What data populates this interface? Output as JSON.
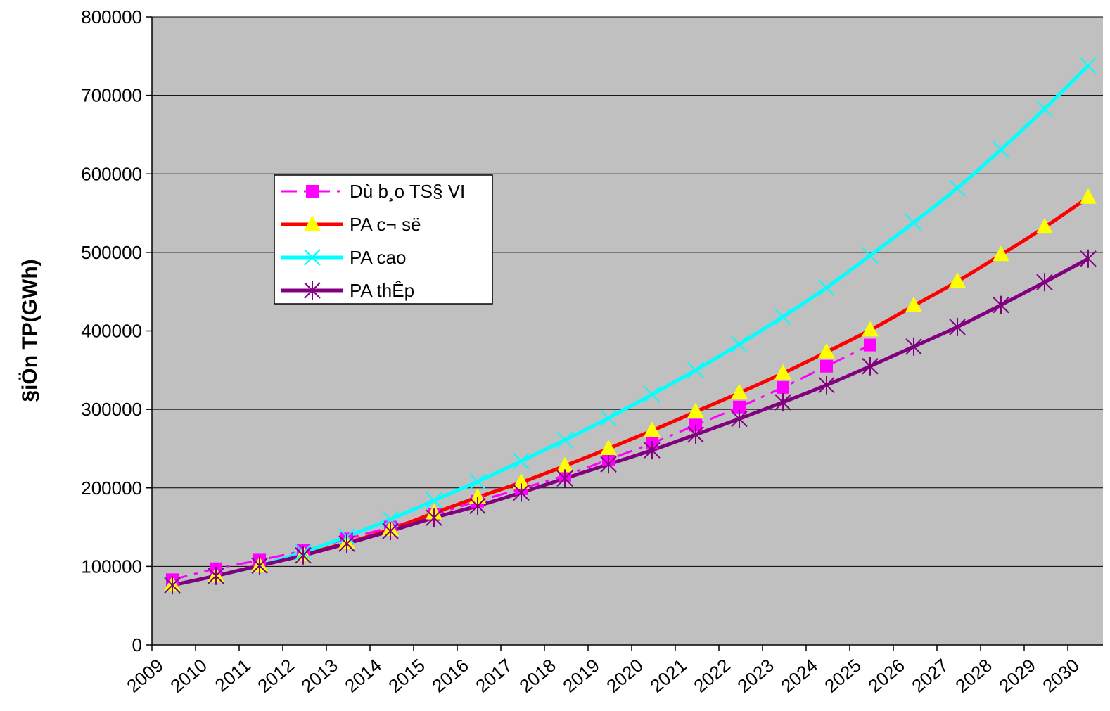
{
  "chart_data": {
    "type": "line",
    "title": "",
    "xlabel": "",
    "ylabel": "§iÖn TP(GWh)",
    "ylim": [
      0,
      800000
    ],
    "yticks": [
      0,
      100000,
      200000,
      300000,
      400000,
      500000,
      600000,
      700000,
      800000
    ],
    "categories": [
      "2009",
      "2010",
      "2011",
      "2012",
      "2013",
      "2014",
      "2015",
      "2016",
      "2017",
      "2018",
      "2019",
      "2020",
      "2021",
      "2022",
      "2023",
      "2024",
      "2025",
      "2026",
      "2027",
      "2028",
      "2029",
      "2030"
    ],
    "grid": "horizontal",
    "plot_background": "#c0c0c0",
    "legend_position": "upper-left",
    "series": [
      {
        "name": "Dù b¸o TS§ VI",
        "color": "#ff00ff",
        "marker": "square",
        "dash": "dash-dot",
        "values": [
          83000,
          97000,
          108000,
          120000,
          135000,
          150000,
          166000,
          183000,
          199000,
          216000,
          236000,
          257000,
          280000,
          303000,
          328000,
          355000,
          382000,
          null,
          null,
          null,
          null,
          null
        ]
      },
      {
        "name": "PA c¬ së",
        "color": "#ff0000",
        "marker": "triangle",
        "marker_color": "#ffff00",
        "dash": "solid",
        "values": [
          76000,
          88000,
          101000,
          115000,
          130000,
          147000,
          168000,
          188000,
          207000,
          228000,
          250000,
          273000,
          297000,
          321000,
          346000,
          373000,
          401000,
          432000,
          463000,
          497000,
          532000,
          570000
        ]
      },
      {
        "name": "PA cao",
        "color": "#00ffff",
        "marker": "x",
        "dash": "solid",
        "values": [
          76000,
          88000,
          101000,
          118000,
          138000,
          160000,
          184000,
          208000,
          234000,
          261000,
          289000,
          319000,
          350000,
          383000,
          418000,
          455000,
          496000,
          538000,
          582000,
          631000,
          683000,
          738000
        ]
      },
      {
        "name": "PA thÊp",
        "color": "#800080",
        "marker": "asterisk",
        "dash": "solid",
        "values": [
          76000,
          88000,
          101000,
          114000,
          129000,
          145000,
          162000,
          177000,
          194000,
          212000,
          230000,
          248000,
          268000,
          288000,
          309000,
          331000,
          355000,
          380000,
          405000,
          433000,
          462000,
          492000
        ]
      }
    ]
  }
}
